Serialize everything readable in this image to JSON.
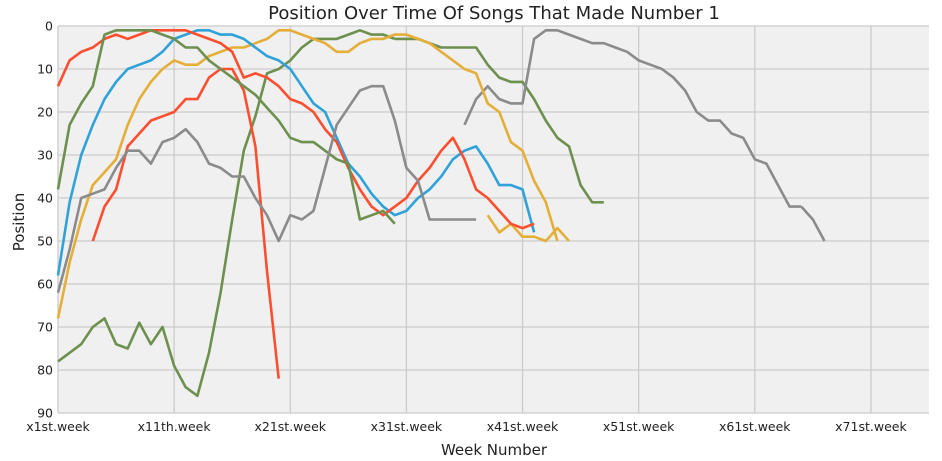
{
  "chart_data": {
    "type": "line",
    "title": "Position Over Time Of Songs That Made Number 1",
    "xlabel": "Week Number",
    "ylabel": "Position",
    "x_tick_labels": [
      "x1st.week",
      "x11th.week",
      "x21st.week",
      "x31st.week",
      "x41st.week",
      "x51st.week",
      "x61st.week",
      "x71st.week"
    ],
    "x_tick_weeks": [
      1,
      11,
      21,
      31,
      41,
      51,
      61,
      71
    ],
    "xlim": [
      1,
      76
    ],
    "y_ticks": [
      0,
      10,
      20,
      30,
      40,
      50,
      60,
      70,
      80,
      90
    ],
    "ylim": [
      0,
      90
    ],
    "y_inverted": true,
    "grid": true,
    "colors": {
      "background": "#f0f0f0",
      "grid": "#cbcbcb",
      "palette": [
        "#fc4f30",
        "#30a2da",
        "#e5ae38",
        "#6d904f",
        "#8b8b8b"
      ]
    },
    "series": [
      {
        "color": "#6d904f",
        "x": [
          1,
          2,
          3,
          4,
          5,
          6,
          7,
          8,
          9,
          10,
          11,
          12,
          13,
          14,
          15,
          16,
          17,
          18,
          19,
          20,
          21,
          22,
          23,
          24,
          25,
          26,
          27,
          28,
          29,
          30
        ],
        "values": [
          78,
          76,
          74,
          70,
          68,
          74,
          75,
          69,
          74,
          70,
          79,
          84,
          86,
          76,
          62,
          45,
          29,
          21,
          11,
          10,
          8,
          5,
          3,
          3,
          3,
          2,
          1,
          2,
          2,
          3
        ]
      },
      {
        "color": "#6d904f",
        "x": [
          30,
          31,
          32,
          33,
          34,
          35,
          36,
          37,
          38,
          39,
          40,
          41,
          42,
          43,
          44,
          45,
          46,
          47,
          48
        ],
        "values": [
          3,
          3,
          3,
          4,
          5,
          5,
          5,
          5,
          9,
          12,
          13,
          13,
          17,
          22,
          26,
          28,
          37,
          41,
          41
        ]
      },
      {
        "color": "#8b8b8b",
        "x": [
          36,
          37,
          38,
          39,
          40,
          41,
          42,
          43,
          44,
          45,
          46,
          47,
          48,
          49,
          50,
          51,
          52,
          53,
          54,
          55,
          56,
          57,
          58,
          59,
          60,
          61,
          62,
          63,
          64,
          65
        ],
        "values": [
          23,
          17,
          14,
          17,
          18,
          18,
          3,
          1,
          1,
          2,
          3,
          4,
          4,
          5,
          6,
          8,
          9,
          10,
          12,
          15,
          20,
          22,
          22,
          25,
          26,
          31,
          32,
          37,
          42,
          42
        ]
      },
      {
        "color": "#8b8b8b",
        "x": [
          65,
          66,
          67
        ],
        "values": [
          42,
          45,
          50
        ]
      },
      {
        "color": "#e5ae38",
        "x": [
          1,
          2,
          3,
          4,
          5,
          6,
          7,
          8,
          9,
          10,
          11,
          12,
          13,
          14,
          15,
          16,
          17,
          18,
          19,
          20,
          21,
          22,
          23,
          24,
          25,
          26,
          27,
          28,
          29,
          30,
          31,
          32,
          33,
          34,
          35,
          36,
          37,
          38,
          39,
          40,
          41,
          42,
          43,
          44
        ],
        "values": [
          68,
          55,
          45,
          37,
          34,
          31,
          23,
          17,
          13,
          10,
          8,
          9,
          9,
          7,
          6,
          5,
          5,
          4,
          3,
          1,
          1,
          2,
          3,
          4,
          6,
          6,
          4,
          3,
          3,
          2,
          2,
          3,
          4,
          6,
          8,
          10,
          11,
          18,
          20,
          27,
          29,
          36,
          41,
          50
        ]
      },
      {
        "color": "#e5ae38",
        "x": [
          38,
          39,
          40,
          41,
          42,
          43,
          44,
          45
        ],
        "values": [
          44,
          48,
          46,
          49,
          49,
          50,
          47,
          50
        ]
      },
      {
        "color": "#30a2da",
        "x": [
          1,
          2,
          3,
          4,
          5,
          6,
          7,
          8,
          9,
          10,
          11,
          12,
          13,
          14,
          15,
          16,
          17,
          18,
          19,
          20,
          21,
          22,
          23,
          24,
          25,
          26,
          27,
          28,
          29,
          30,
          31,
          32,
          33,
          34,
          35,
          36,
          37,
          38,
          39,
          40,
          41,
          42
        ],
        "values": [
          58,
          41,
          30,
          23,
          17,
          13,
          10,
          9,
          8,
          6,
          3,
          2,
          1,
          1,
          2,
          2,
          3,
          5,
          7,
          8,
          10,
          14,
          18,
          20,
          26,
          32,
          35,
          39,
          42,
          44,
          43,
          40,
          38,
          35,
          31,
          29,
          28,
          32,
          37,
          37,
          38,
          48
        ]
      },
      {
        "color": "#fc4f30",
        "x": [
          1,
          2,
          3,
          4,
          5,
          6,
          7,
          8,
          9,
          10,
          11,
          12,
          13,
          14,
          15,
          16,
          17,
          18,
          19,
          20,
          21,
          22,
          23,
          24,
          25,
          26,
          27,
          28,
          29,
          30,
          31,
          32,
          33,
          34,
          35,
          36,
          37,
          38,
          39,
          40,
          41,
          42
        ],
        "values": [
          14,
          8,
          6,
          5,
          3,
          2,
          3,
          2,
          1,
          1,
          1,
          1,
          2,
          3,
          4,
          6,
          12,
          11,
          12,
          14,
          17,
          18,
          20,
          24,
          27,
          33,
          38,
          42,
          44,
          42,
          40,
          36,
          33,
          29,
          26,
          31,
          38,
          40,
          43,
          46,
          47,
          46
        ]
      },
      {
        "color": "#fc4f30",
        "x": [
          4,
          5,
          6,
          7,
          8,
          9,
          10,
          11,
          12,
          13,
          14,
          15,
          16,
          17,
          18,
          19,
          20
        ],
        "values": [
          50,
          42,
          38,
          28,
          25,
          22,
          21,
          20,
          17,
          17,
          12,
          10,
          10,
          15,
          28,
          57,
          82
        ]
      },
      {
        "color": "#6d904f",
        "x": [
          1,
          2,
          3,
          4,
          5,
          6,
          7,
          8,
          9,
          10,
          11,
          12,
          13,
          14,
          15,
          16,
          17,
          18,
          19,
          20,
          21,
          22,
          23,
          24,
          25,
          26,
          27,
          28,
          29,
          30
        ],
        "values": [
          38,
          23,
          18,
          14,
          2,
          1,
          1,
          1,
          1,
          2,
          3,
          5,
          5,
          8,
          10,
          12,
          14,
          16,
          19,
          22,
          26,
          27,
          27,
          29,
          31,
          32,
          45,
          44,
          43,
          46
        ]
      },
      {
        "color": "#8b8b8b",
        "x": [
          1,
          2,
          3,
          4,
          5,
          6,
          7,
          8,
          9,
          10,
          11,
          12,
          13,
          14,
          15,
          16,
          17,
          18,
          19,
          20,
          21,
          22,
          23,
          24,
          25,
          26,
          27,
          28,
          29,
          30,
          31,
          32,
          33,
          34,
          35,
          36,
          37
        ],
        "values": [
          62,
          52,
          40,
          39,
          38,
          33,
          29,
          29,
          32,
          27,
          26,
          24,
          27,
          32,
          33,
          35,
          35,
          40,
          44,
          50,
          44,
          45,
          43,
          33,
          23,
          19,
          15,
          14,
          14,
          22,
          33,
          36,
          45,
          45,
          45,
          45,
          45
        ]
      }
    ]
  }
}
